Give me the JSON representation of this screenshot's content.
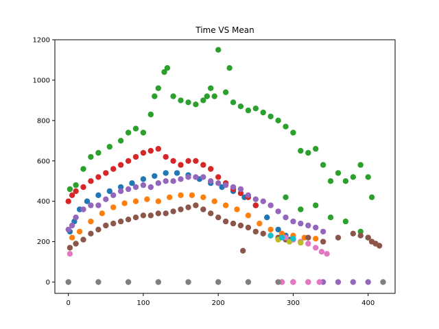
{
  "chart_data": {
    "type": "scatter",
    "title": "Time VS Mean",
    "xlabel": "",
    "ylabel": "",
    "xlim": [
      -18,
      436
    ],
    "ylim": [
      -56,
      1200
    ],
    "x_ticks": [
      0,
      100,
      200,
      300,
      400
    ],
    "y_ticks": [
      0,
      200,
      400,
      600,
      800,
      1000,
      1200
    ],
    "grid": false,
    "legend": false,
    "series": [
      {
        "color": "#1f77b4",
        "points": [
          [
            2,
            250
          ],
          [
            8,
            300
          ],
          [
            15,
            360
          ],
          [
            25,
            400
          ],
          [
            40,
            430
          ],
          [
            55,
            450
          ],
          [
            70,
            470
          ],
          [
            85,
            490
          ],
          [
            100,
            510
          ],
          [
            115,
            525
          ],
          [
            130,
            540
          ],
          [
            145,
            540
          ],
          [
            160,
            530
          ],
          [
            175,
            510
          ],
          [
            190,
            490
          ],
          [
            205,
            470
          ],
          [
            220,
            450
          ],
          [
            235,
            420
          ],
          [
            250,
            380
          ],
          [
            265,
            320
          ],
          [
            280,
            260
          ],
          [
            290,
            230
          ],
          [
            296,
            210
          ]
        ]
      },
      {
        "color": "#ff7f0e",
        "points": [
          [
            5,
            220
          ],
          [
            15,
            250
          ],
          [
            30,
            300
          ],
          [
            45,
            340
          ],
          [
            60,
            370
          ],
          [
            75,
            390
          ],
          [
            90,
            400
          ],
          [
            105,
            410
          ],
          [
            120,
            400
          ],
          [
            135,
            420
          ],
          [
            150,
            430
          ],
          [
            165,
            430
          ],
          [
            180,
            420
          ],
          [
            195,
            400
          ],
          [
            210,
            380
          ],
          [
            225,
            360
          ],
          [
            240,
            330
          ],
          [
            255,
            290
          ],
          [
            270,
            260
          ],
          [
            285,
            240
          ],
          [
            300,
            230
          ],
          [
            315,
            220
          ],
          [
            330,
            215
          ]
        ]
      },
      {
        "color": "#2ca02c",
        "points": [
          [
            2,
            460
          ],
          [
            10,
            480
          ],
          [
            20,
            560
          ],
          [
            30,
            620
          ],
          [
            40,
            640
          ],
          [
            55,
            670
          ],
          [
            70,
            700
          ],
          [
            80,
            740
          ],
          [
            90,
            760
          ],
          [
            100,
            740
          ],
          [
            110,
            830
          ],
          [
            115,
            920
          ],
          [
            120,
            960
          ],
          [
            128,
            1040
          ],
          [
            132,
            1060
          ],
          [
            140,
            920
          ],
          [
            150,
            900
          ],
          [
            160,
            890
          ],
          [
            170,
            880
          ],
          [
            180,
            900
          ],
          [
            185,
            920
          ],
          [
            190,
            960
          ],
          [
            195,
            920
          ],
          [
            200,
            1150
          ],
          [
            210,
            940
          ],
          [
            215,
            1060
          ],
          [
            220,
            890
          ],
          [
            230,
            870
          ],
          [
            240,
            850
          ],
          [
            250,
            860
          ],
          [
            260,
            840
          ],
          [
            270,
            820
          ],
          [
            280,
            800
          ],
          [
            290,
            770
          ],
          [
            300,
            740
          ],
          [
            310,
            650
          ],
          [
            320,
            640
          ],
          [
            330,
            660
          ],
          [
            340,
            580
          ],
          [
            350,
            500
          ],
          [
            360,
            540
          ],
          [
            370,
            500
          ],
          [
            380,
            520
          ],
          [
            390,
            580
          ],
          [
            400,
            520
          ],
          [
            405,
            420
          ],
          [
            290,
            420
          ],
          [
            310,
            360
          ],
          [
            330,
            380
          ],
          [
            350,
            320
          ],
          [
            370,
            300
          ],
          [
            390,
            250
          ],
          [
            400,
            220
          ]
        ]
      },
      {
        "color": "#d62728",
        "points": [
          [
            0,
            400
          ],
          [
            5,
            430
          ],
          [
            10,
            450
          ],
          [
            20,
            470
          ],
          [
            30,
            500
          ],
          [
            40,
            520
          ],
          [
            50,
            540
          ],
          [
            60,
            560
          ],
          [
            70,
            580
          ],
          [
            80,
            600
          ],
          [
            90,
            620
          ],
          [
            100,
            640
          ],
          [
            110,
            650
          ],
          [
            120,
            660
          ],
          [
            130,
            620
          ],
          [
            140,
            600
          ],
          [
            150,
            580
          ],
          [
            160,
            600
          ],
          [
            170,
            600
          ],
          [
            180,
            580
          ],
          [
            190,
            560
          ],
          [
            200,
            520
          ],
          [
            210,
            490
          ],
          [
            220,
            460
          ],
          [
            230,
            440
          ],
          [
            240,
            420
          ],
          [
            250,
            380
          ]
        ]
      },
      {
        "color": "#9467bd",
        "points": [
          [
            0,
            260
          ],
          [
            5,
            280
          ],
          [
            10,
            320
          ],
          [
            20,
            360
          ],
          [
            30,
            380
          ],
          [
            40,
            380
          ],
          [
            50,
            410
          ],
          [
            60,
            430
          ],
          [
            70,
            450
          ],
          [
            80,
            460
          ],
          [
            90,
            470
          ],
          [
            100,
            480
          ],
          [
            110,
            470
          ],
          [
            120,
            490
          ],
          [
            130,
            500
          ],
          [
            140,
            500
          ],
          [
            150,
            510
          ],
          [
            160,
            520
          ],
          [
            170,
            520
          ],
          [
            180,
            520
          ],
          [
            190,
            500
          ],
          [
            200,
            490
          ],
          [
            210,
            480
          ],
          [
            220,
            470
          ],
          [
            230,
            460
          ],
          [
            240,
            430
          ],
          [
            250,
            410
          ],
          [
            260,
            400
          ],
          [
            270,
            380
          ],
          [
            280,
            350
          ],
          [
            290,
            320
          ],
          [
            300,
            300
          ],
          [
            310,
            290
          ],
          [
            320,
            280
          ],
          [
            330,
            270
          ],
          [
            340,
            250
          ],
          [
            285,
            0
          ],
          [
            300,
            0
          ],
          [
            320,
            0
          ],
          [
            340,
            0
          ],
          [
            360,
            0
          ],
          [
            380,
            0
          ],
          [
            400,
            0
          ]
        ]
      },
      {
        "color": "#8c564b",
        "points": [
          [
            2,
            170
          ],
          [
            10,
            190
          ],
          [
            20,
            210
          ],
          [
            30,
            240
          ],
          [
            40,
            260
          ],
          [
            50,
            280
          ],
          [
            60,
            290
          ],
          [
            70,
            300
          ],
          [
            80,
            310
          ],
          [
            90,
            320
          ],
          [
            100,
            330
          ],
          [
            110,
            330
          ],
          [
            120,
            340
          ],
          [
            130,
            340
          ],
          [
            140,
            350
          ],
          [
            150,
            360
          ],
          [
            160,
            370
          ],
          [
            170,
            380
          ],
          [
            180,
            360
          ],
          [
            190,
            340
          ],
          [
            200,
            320
          ],
          [
            210,
            300
          ],
          [
            220,
            290
          ],
          [
            230,
            280
          ],
          [
            233,
            155
          ],
          [
            240,
            270
          ],
          [
            250,
            250
          ],
          [
            260,
            240
          ],
          [
            270,
            230
          ],
          [
            280,
            220
          ],
          [
            290,
            210
          ],
          [
            300,
            210
          ],
          [
            320,
            220
          ],
          [
            340,
            200
          ],
          [
            360,
            220
          ],
          [
            380,
            240
          ],
          [
            390,
            230
          ],
          [
            400,
            220
          ],
          [
            405,
            200
          ],
          [
            410,
            190
          ],
          [
            415,
            180
          ]
        ]
      },
      {
        "color": "#e377c2",
        "points": [
          [
            2,
            140
          ],
          [
            290,
            220
          ],
          [
            300,
            210
          ],
          [
            310,
            200
          ],
          [
            320,
            190
          ],
          [
            330,
            170
          ],
          [
            338,
            150
          ],
          [
            345,
            140
          ],
          [
            285,
            0
          ],
          [
            300,
            0
          ],
          [
            320,
            0
          ],
          [
            335,
            0
          ]
        ]
      },
      {
        "color": "#7f7f7f",
        "points": [
          [
            0,
            0
          ],
          [
            40,
            0
          ],
          [
            80,
            0
          ],
          [
            120,
            0
          ],
          [
            160,
            0
          ],
          [
            200,
            0
          ],
          [
            240,
            0
          ],
          [
            280,
            0
          ],
          [
            420,
            0
          ]
        ]
      },
      {
        "color": "#bcbd22",
        "points": [
          [
            280,
            210
          ],
          [
            295,
            200
          ],
          [
            310,
            195
          ]
        ]
      },
      {
        "color": "#17becf",
        "points": [
          [
            270,
            230
          ],
          [
            285,
            220
          ],
          [
            300,
            215
          ]
        ]
      }
    ]
  }
}
